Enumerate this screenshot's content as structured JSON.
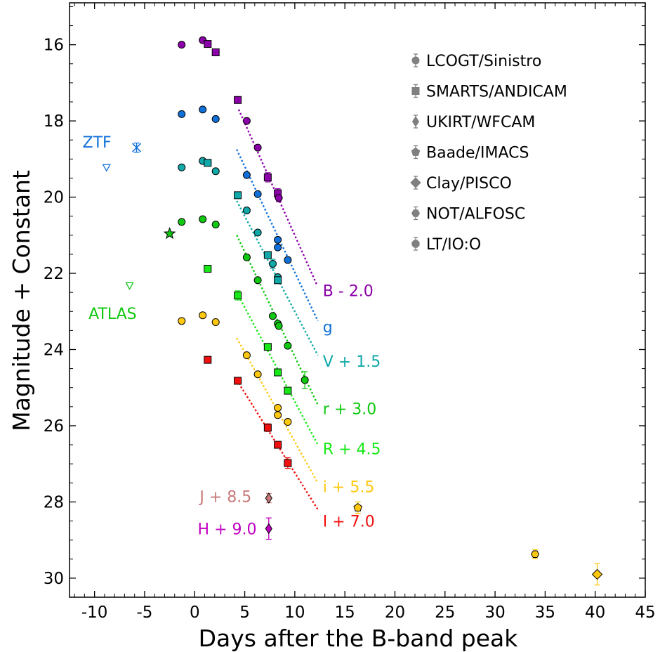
{
  "chart_data": {
    "type": "scatter",
    "xlabel": "Days after the B-band peak",
    "ylabel": "Magnitude + Constant",
    "xlim": [
      -12.5,
      45
    ],
    "ylim": [
      30.5,
      14.9
    ],
    "y_inverted": true,
    "xticks": [
      -10,
      -5,
      0,
      5,
      10,
      15,
      20,
      25,
      30,
      35,
      40,
      45
    ],
    "xtick_labels": [
      "-10",
      "-5",
      "0",
      "5",
      "10",
      "15",
      "20",
      "25",
      "30",
      "35",
      "40",
      "45"
    ],
    "yticks": [
      16,
      18,
      20,
      22,
      24,
      26,
      28,
      30
    ],
    "ytick_labels": [
      "16",
      "18",
      "20",
      "22",
      "24",
      "26",
      "28",
      "30"
    ],
    "legend": {
      "position": "top-right",
      "entries": [
        {
          "label": "LCOGT/Sinistro",
          "marker": "circle"
        },
        {
          "label": "SMARTS/ANDICAM",
          "marker": "square"
        },
        {
          "label": "UKIRT/WFCAM",
          "marker": "thin-diamond"
        },
        {
          "label": "Baade/IMACS",
          "marker": "pentagon"
        },
        {
          "label": "Clay/PISCO",
          "marker": "diamond"
        },
        {
          "label": "NOT/ALFOSC",
          "marker": "hexagon"
        },
        {
          "label": "LT/IO:O",
          "marker": "octagon"
        }
      ]
    },
    "series": [
      {
        "name": "B - 2.0",
        "color": "#8b00a8",
        "label_x": 12.8,
        "label_y": 22.45,
        "fit": [
          [
            4.4,
            17.7
          ],
          [
            12.2,
            22.3
          ]
        ],
        "points": [
          [
            -1.3,
            16.0,
            "circle",
            0
          ],
          [
            0.8,
            15.88,
            "circle",
            0
          ],
          [
            1.3,
            15.98,
            "square",
            0
          ],
          [
            2.1,
            16.2,
            "square",
            0.08
          ],
          [
            4.3,
            17.45,
            "square",
            0
          ],
          [
            5.2,
            18.0,
            "circle",
            0
          ],
          [
            6.3,
            18.7,
            "circle",
            0
          ],
          [
            7.3,
            19.48,
            "square",
            0.12
          ],
          [
            8.3,
            19.9,
            "square",
            0.12
          ],
          [
            8.4,
            20.02,
            "circle",
            0.1
          ]
        ]
      },
      {
        "name": "g",
        "color": "#1070d8",
        "label_x": 12.8,
        "label_y": 23.4,
        "fit": [
          [
            4.2,
            18.75
          ],
          [
            12.3,
            23.25
          ]
        ],
        "points": [
          [
            -1.3,
            17.82,
            "circle",
            0
          ],
          [
            0.8,
            17.7,
            "circle",
            0
          ],
          [
            2.1,
            17.95,
            "circle",
            0
          ],
          [
            5.2,
            19.42,
            "circle",
            0
          ],
          [
            6.3,
            19.92,
            "circle",
            0
          ],
          [
            8.3,
            21.12,
            "circle",
            0
          ],
          [
            8.3,
            21.32,
            "circle",
            0
          ],
          [
            9.3,
            21.65,
            "circle",
            0
          ]
        ]
      },
      {
        "name": "V + 1.5",
        "color": "#10a8a8",
        "label_x": 12.8,
        "label_y": 24.3,
        "fit": [
          [
            4.2,
            20.1
          ],
          [
            12.3,
            24.15
          ]
        ],
        "points": [
          [
            -1.3,
            19.22,
            "circle",
            0
          ],
          [
            0.8,
            19.05,
            "circle",
            0
          ],
          [
            1.3,
            19.1,
            "square",
            0
          ],
          [
            2.1,
            19.32,
            "circle",
            0
          ],
          [
            4.3,
            19.95,
            "square",
            0
          ],
          [
            5.2,
            20.35,
            "circle",
            0
          ],
          [
            6.3,
            20.93,
            "circle",
            0
          ],
          [
            7.3,
            21.52,
            "square",
            0
          ],
          [
            7.8,
            21.75,
            "circle",
            0.12
          ],
          [
            8.3,
            22.1,
            "circle",
            0
          ],
          [
            8.3,
            22.18,
            "square",
            0.08
          ]
        ]
      },
      {
        "name": "r + 3.0",
        "color": "#10c810",
        "label_x": 12.8,
        "label_y": 25.55,
        "fit": [
          [
            4.2,
            21.0
          ],
          [
            12.3,
            25.45
          ]
        ],
        "points": [
          [
            -1.3,
            20.65,
            "circle",
            0
          ],
          [
            0.8,
            20.58,
            "circle",
            0
          ],
          [
            2.1,
            20.72,
            "circle",
            0
          ],
          [
            5.2,
            21.58,
            "circle",
            0
          ],
          [
            6.3,
            22.18,
            "circle",
            0
          ],
          [
            7.8,
            23.12,
            "circle",
            0
          ],
          [
            8.3,
            23.32,
            "circle",
            0
          ],
          [
            8.4,
            23.38,
            "circle",
            0
          ],
          [
            9.3,
            23.9,
            "circle",
            0
          ],
          [
            11.0,
            24.8,
            "circle",
            0.22
          ],
          [
            -2.5,
            20.96,
            "star",
            0
          ]
        ]
      },
      {
        "name": "R + 4.5",
        "color": "#18e818",
        "label_x": 12.8,
        "label_y": 26.6,
        "fit": [
          [
            4.2,
            22.5
          ],
          [
            12.3,
            26.5
          ]
        ],
        "points": [
          [
            1.3,
            21.88,
            "square",
            0
          ],
          [
            4.3,
            22.58,
            "square",
            0.12
          ],
          [
            7.3,
            23.93,
            "square",
            0
          ],
          [
            8.3,
            24.6,
            "square",
            0
          ],
          [
            9.3,
            25.08,
            "square",
            0
          ]
        ]
      },
      {
        "name": "i + 5.5",
        "color": "#ffc810",
        "label_x": 12.8,
        "label_y": 27.6,
        "fit": [
          [
            4.2,
            23.7
          ],
          [
            12.3,
            27.5
          ]
        ],
        "points": [
          [
            -1.3,
            23.25,
            "circle",
            0
          ],
          [
            0.8,
            23.1,
            "circle",
            0
          ],
          [
            2.1,
            23.28,
            "circle",
            0
          ],
          [
            5.2,
            24.15,
            "circle",
            0
          ],
          [
            6.3,
            24.65,
            "circle",
            0
          ],
          [
            8.3,
            25.53,
            "circle",
            0
          ],
          [
            8.3,
            25.72,
            "circle",
            0
          ],
          [
            9.3,
            25.9,
            "circle",
            0
          ],
          [
            16.3,
            28.15,
            "pentagon",
            0.15
          ],
          [
            34.0,
            29.37,
            "hexagon",
            0.12
          ],
          [
            40.2,
            29.9,
            "diamond",
            0.28
          ]
        ]
      },
      {
        "name": "I + 7.0",
        "color": "#f01010",
        "label_x": 12.8,
        "label_y": 28.5,
        "fit": [
          [
            4.2,
            24.8
          ],
          [
            12.3,
            28.2
          ]
        ],
        "points": [
          [
            1.3,
            24.27,
            "square",
            0
          ],
          [
            4.3,
            24.82,
            "square",
            0
          ],
          [
            7.3,
            26.05,
            "square",
            0.1
          ],
          [
            8.3,
            26.5,
            "square",
            0
          ],
          [
            9.3,
            26.98,
            "square",
            0.14
          ]
        ]
      },
      {
        "name": "J + 8.5",
        "color": "#c87878",
        "label_x": 0.5,
        "label_y": 27.85,
        "points": [
          [
            7.4,
            27.9,
            "thin-diamond",
            0.12
          ]
        ]
      },
      {
        "name": "H + 9.0",
        "color": "#c000c0",
        "label_x": 0.3,
        "label_y": 28.7,
        "points": [
          [
            7.4,
            28.7,
            "thin-diamond",
            0.28
          ]
        ]
      }
    ],
    "upper_limits": [
      {
        "survey": "ZTF",
        "color": "#1070d8",
        "x": -8.8,
        "y": 19.22
      },
      {
        "survey": "ATLAS",
        "color": "#10c810",
        "x": -6.5,
        "y": 22.32
      }
    ],
    "ztf_point": {
      "x": -5.8,
      "y": 18.7,
      "err": 0.12,
      "color": "#1070d8"
    },
    "survey_labels": [
      {
        "text": "ZTF",
        "color": "#1070d8",
        "x": -11.2,
        "y": 18.55
      },
      {
        "text": "ATLAS",
        "color": "#10c810",
        "x": -10.6,
        "y": 23.05
      }
    ]
  }
}
